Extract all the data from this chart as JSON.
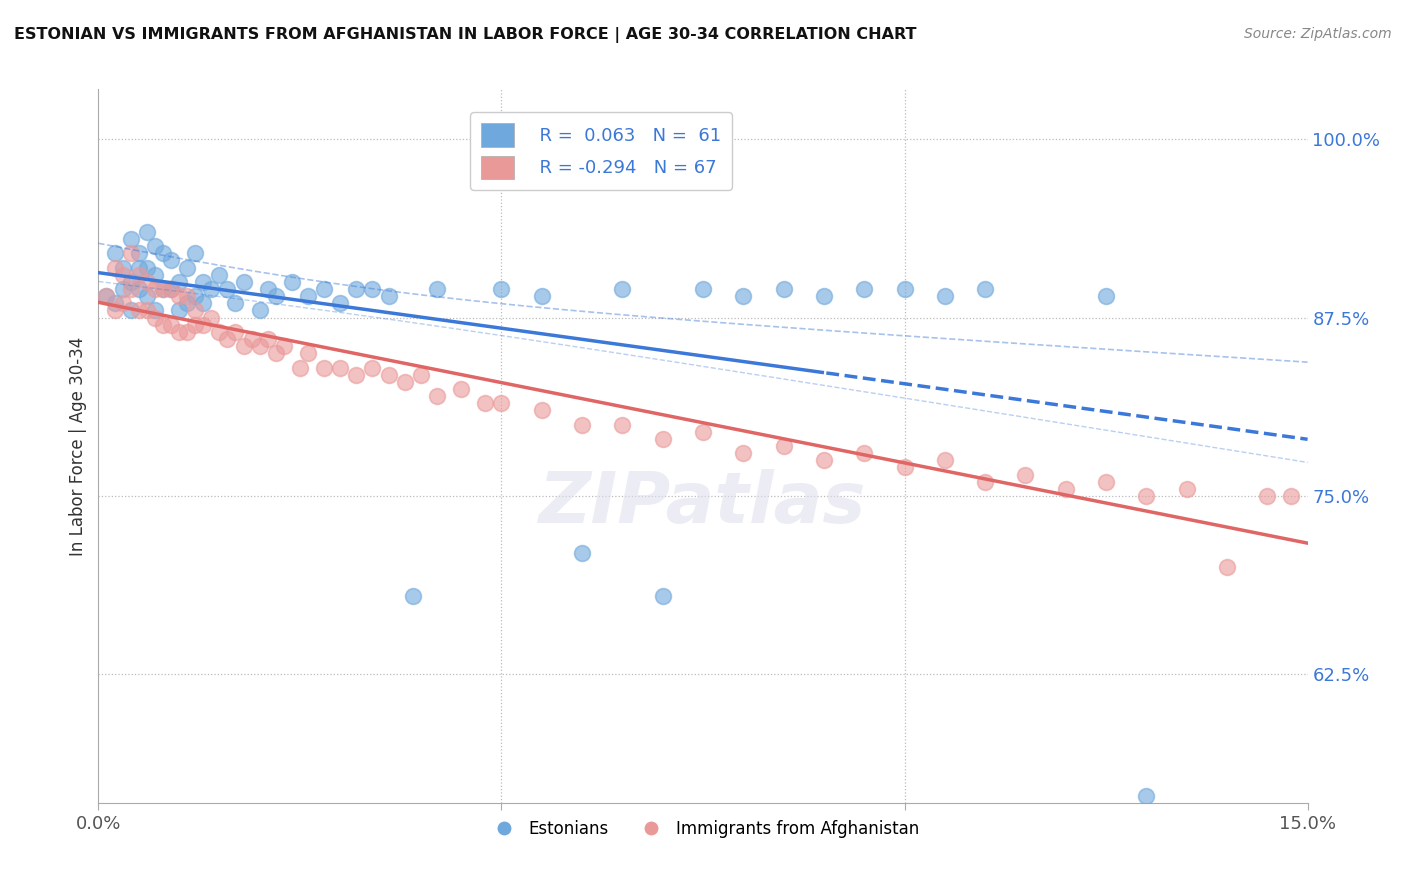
{
  "title": "ESTONIAN VS IMMIGRANTS FROM AFGHANISTAN IN LABOR FORCE | AGE 30-34 CORRELATION CHART",
  "source": "Source: ZipAtlas.com",
  "xlabel": "",
  "ylabel": "In Labor Force | Age 30-34",
  "xlim": [
    0.0,
    0.15
  ],
  "ylim": [
    0.535,
    1.035
  ],
  "xticks": [
    0.0,
    0.05,
    0.1,
    0.15
  ],
  "xticklabels": [
    "0.0%",
    "",
    "",
    "15.0%"
  ],
  "yticks": [
    0.625,
    0.75,
    0.875,
    1.0
  ],
  "yticklabels": [
    "62.5%",
    "75.0%",
    "87.5%",
    "100.0%"
  ],
  "blue_color": "#6fa8dc",
  "pink_color": "#ea9999",
  "blue_line_color": "#3c78d8",
  "pink_line_color": "#e06666",
  "background_color": "#ffffff",
  "grid_color": "#cccccc",
  "est_x": [
    0.001,
    0.002,
    0.002,
    0.003,
    0.003,
    0.004,
    0.004,
    0.004,
    0.005,
    0.005,
    0.005,
    0.006,
    0.006,
    0.006,
    0.007,
    0.007,
    0.007,
    0.008,
    0.008,
    0.009,
    0.009,
    0.01,
    0.01,
    0.011,
    0.011,
    0.012,
    0.012,
    0.013,
    0.013,
    0.014,
    0.015,
    0.016,
    0.017,
    0.018,
    0.02,
    0.021,
    0.022,
    0.024,
    0.026,
    0.028,
    0.03,
    0.032,
    0.034,
    0.036,
    0.039,
    0.042,
    0.05,
    0.055,
    0.06,
    0.065,
    0.07,
    0.075,
    0.08,
    0.085,
    0.09,
    0.095,
    0.1,
    0.105,
    0.11,
    0.125,
    0.13
  ],
  "est_y": [
    0.89,
    0.92,
    0.885,
    0.91,
    0.895,
    0.93,
    0.9,
    0.88,
    0.92,
    0.91,
    0.895,
    0.935,
    0.91,
    0.89,
    0.925,
    0.905,
    0.88,
    0.92,
    0.895,
    0.915,
    0.895,
    0.9,
    0.88,
    0.91,
    0.885,
    0.92,
    0.89,
    0.9,
    0.885,
    0.895,
    0.905,
    0.895,
    0.885,
    0.9,
    0.88,
    0.895,
    0.89,
    0.9,
    0.89,
    0.895,
    0.885,
    0.895,
    0.895,
    0.89,
    0.68,
    0.895,
    0.895,
    0.89,
    0.71,
    0.895,
    0.68,
    0.895,
    0.89,
    0.895,
    0.89,
    0.895,
    0.895,
    0.89,
    0.895,
    0.89,
    0.54
  ],
  "afg_x": [
    0.001,
    0.002,
    0.002,
    0.003,
    0.003,
    0.004,
    0.004,
    0.005,
    0.005,
    0.006,
    0.006,
    0.007,
    0.007,
    0.008,
    0.008,
    0.009,
    0.009,
    0.01,
    0.01,
    0.011,
    0.011,
    0.012,
    0.012,
    0.013,
    0.014,
    0.015,
    0.016,
    0.017,
    0.018,
    0.019,
    0.02,
    0.021,
    0.022,
    0.023,
    0.025,
    0.026,
    0.028,
    0.03,
    0.032,
    0.034,
    0.036,
    0.038,
    0.04,
    0.042,
    0.045,
    0.048,
    0.05,
    0.055,
    0.06,
    0.065,
    0.07,
    0.075,
    0.08,
    0.085,
    0.09,
    0.095,
    0.1,
    0.105,
    0.11,
    0.115,
    0.12,
    0.125,
    0.13,
    0.135,
    0.14,
    0.145,
    0.148
  ],
  "afg_y": [
    0.89,
    0.91,
    0.88,
    0.905,
    0.885,
    0.92,
    0.895,
    0.905,
    0.88,
    0.9,
    0.88,
    0.895,
    0.875,
    0.895,
    0.87,
    0.895,
    0.87,
    0.89,
    0.865,
    0.89,
    0.865,
    0.88,
    0.87,
    0.87,
    0.875,
    0.865,
    0.86,
    0.865,
    0.855,
    0.86,
    0.855,
    0.86,
    0.85,
    0.855,
    0.84,
    0.85,
    0.84,
    0.84,
    0.835,
    0.84,
    0.835,
    0.83,
    0.835,
    0.82,
    0.825,
    0.815,
    0.815,
    0.81,
    0.8,
    0.8,
    0.79,
    0.795,
    0.78,
    0.785,
    0.775,
    0.78,
    0.77,
    0.775,
    0.76,
    0.765,
    0.755,
    0.76,
    0.75,
    0.755,
    0.7,
    0.75,
    0.75
  ]
}
